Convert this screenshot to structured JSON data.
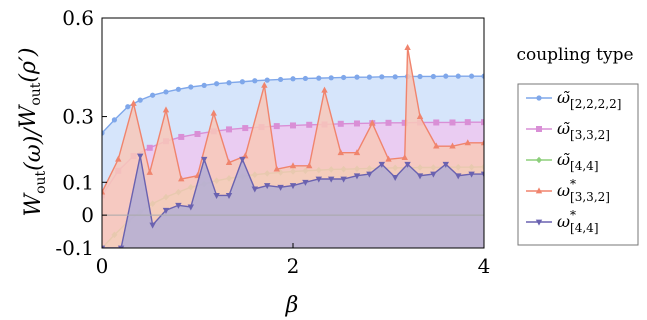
{
  "chart_data": {
    "type": "area",
    "xlabel": "β",
    "ylabel": "W_out(ω)/W_out(ρ′)",
    "xlim": [
      0,
      4
    ],
    "ylim": [
      -0.1,
      0.6
    ],
    "x_ticks": [
      "0",
      "2",
      "4"
    ],
    "y_ticks": [
      "-0.1",
      "0",
      "0.1",
      "0.3",
      "0.6"
    ],
    "legend_title": "coupling type",
    "legend_position": "right",
    "grid": false,
    "series": [
      {
        "name": "ω̃[2,2,2,2]",
        "color": "#7fa7ea",
        "fill": "#cfe0fa",
        "marker": "circle",
        "points": [
          [
            0,
            0.25
          ],
          [
            0.13,
            0.29
          ],
          [
            0.27,
            0.33
          ],
          [
            0.4,
            0.35
          ],
          [
            0.53,
            0.365
          ],
          [
            0.67,
            0.375
          ],
          [
            0.8,
            0.383
          ],
          [
            0.93,
            0.39
          ],
          [
            1.07,
            0.395
          ],
          [
            1.2,
            0.4
          ],
          [
            1.33,
            0.403
          ],
          [
            1.47,
            0.406
          ],
          [
            1.6,
            0.409
          ],
          [
            1.73,
            0.411
          ],
          [
            1.87,
            0.413
          ],
          [
            2.0,
            0.415
          ],
          [
            2.13,
            0.416
          ],
          [
            2.27,
            0.417
          ],
          [
            2.4,
            0.418
          ],
          [
            2.53,
            0.419
          ],
          [
            2.67,
            0.42
          ],
          [
            2.8,
            0.42
          ],
          [
            2.93,
            0.421
          ],
          [
            3.07,
            0.421
          ],
          [
            3.2,
            0.422
          ],
          [
            3.33,
            0.422
          ],
          [
            3.47,
            0.422
          ],
          [
            3.6,
            0.423
          ],
          [
            3.73,
            0.423
          ],
          [
            3.87,
            0.423
          ],
          [
            4.0,
            0.423
          ]
        ]
      },
      {
        "name": "ω̃[3,3,2]",
        "color": "#d98fd6",
        "fill": "#edc8f0",
        "marker": "square",
        "points": [
          [
            0,
            0.06
          ],
          [
            0.17,
            0.135
          ],
          [
            0.33,
            0.18
          ],
          [
            0.5,
            0.205
          ],
          [
            0.67,
            0.225
          ],
          [
            0.83,
            0.238
          ],
          [
            1.0,
            0.247
          ],
          [
            1.17,
            0.255
          ],
          [
            1.33,
            0.261
          ],
          [
            1.5,
            0.265
          ],
          [
            1.67,
            0.268
          ],
          [
            1.83,
            0.271
          ],
          [
            2.0,
            0.273
          ],
          [
            2.17,
            0.275
          ],
          [
            2.33,
            0.276
          ],
          [
            2.5,
            0.278
          ],
          [
            2.67,
            0.279
          ],
          [
            2.83,
            0.28
          ],
          [
            3.0,
            0.281
          ],
          [
            3.17,
            0.281
          ],
          [
            3.33,
            0.282
          ],
          [
            3.5,
            0.282
          ],
          [
            3.67,
            0.282
          ],
          [
            3.83,
            0.283
          ],
          [
            4.0,
            0.283
          ]
        ]
      },
      {
        "name": "ω̃[4,4]",
        "color": "#8dcf7c",
        "fill": "#d7efcc",
        "marker": "diamond",
        "points": [
          [
            0,
            -0.1
          ],
          [
            0.13,
            -0.06
          ],
          [
            0.27,
            -0.02
          ],
          [
            0.4,
            0.01
          ],
          [
            0.53,
            0.035
          ],
          [
            0.67,
            0.055
          ],
          [
            0.8,
            0.07
          ],
          [
            0.93,
            0.085
          ],
          [
            1.07,
            0.095
          ],
          [
            1.2,
            0.105
          ],
          [
            1.33,
            0.112
          ],
          [
            1.47,
            0.118
          ],
          [
            1.6,
            0.123
          ],
          [
            1.73,
            0.127
          ],
          [
            1.87,
            0.13
          ],
          [
            2.0,
            0.133
          ],
          [
            2.13,
            0.135
          ],
          [
            2.27,
            0.137
          ],
          [
            2.4,
            0.139
          ],
          [
            2.53,
            0.14
          ],
          [
            2.67,
            0.141
          ],
          [
            2.8,
            0.142
          ],
          [
            2.93,
            0.143
          ],
          [
            3.07,
            0.144
          ],
          [
            3.2,
            0.144
          ],
          [
            3.33,
            0.145
          ],
          [
            3.47,
            0.145
          ],
          [
            3.6,
            0.146
          ],
          [
            3.73,
            0.146
          ],
          [
            3.87,
            0.146
          ],
          [
            4.0,
            0.147
          ]
        ]
      },
      {
        "name": "ω*[3,3,2]",
        "color": "#f0846d",
        "fill": "#f8c8b8",
        "marker": "triangle-up",
        "points": [
          [
            0,
            0.07
          ],
          [
            0.17,
            0.17
          ],
          [
            0.33,
            0.34
          ],
          [
            0.5,
            0.13
          ],
          [
            0.67,
            0.32
          ],
          [
            0.83,
            0.11
          ],
          [
            1.0,
            0.12
          ],
          [
            1.17,
            0.31
          ],
          [
            1.33,
            0.16
          ],
          [
            1.5,
            0.18
          ],
          [
            1.7,
            0.395
          ],
          [
            1.83,
            0.14
          ],
          [
            2.0,
            0.15
          ],
          [
            2.17,
            0.15
          ],
          [
            2.33,
            0.38
          ],
          [
            2.5,
            0.19
          ],
          [
            2.67,
            0.19
          ],
          [
            2.83,
            0.28
          ],
          [
            3.0,
            0.17
          ],
          [
            3.17,
            0.175
          ],
          [
            3.2,
            0.51
          ],
          [
            3.33,
            0.3
          ],
          [
            3.5,
            0.21
          ],
          [
            3.67,
            0.21
          ],
          [
            3.83,
            0.22
          ],
          [
            4.0,
            0.22
          ]
        ]
      },
      {
        "name": "ω*[4,4]",
        "color": "#6a62b0",
        "fill": "#b3aed5",
        "marker": "triangle-down",
        "points": [
          [
            0,
            -0.15
          ],
          [
            0.2,
            -0.12
          ],
          [
            0.4,
            0.18
          ],
          [
            0.53,
            -0.03
          ],
          [
            0.67,
            0.015
          ],
          [
            0.8,
            0.03
          ],
          [
            0.93,
            0.025
          ],
          [
            1.07,
            0.17
          ],
          [
            1.2,
            0.06
          ],
          [
            1.33,
            0.06
          ],
          [
            1.47,
            0.17
          ],
          [
            1.6,
            0.08
          ],
          [
            1.73,
            0.09
          ],
          [
            1.87,
            0.085
          ],
          [
            2.0,
            0.09
          ],
          [
            2.13,
            0.1
          ],
          [
            2.27,
            0.11
          ],
          [
            2.4,
            0.11
          ],
          [
            2.53,
            0.11
          ],
          [
            2.67,
            0.12
          ],
          [
            2.8,
            0.125
          ],
          [
            2.93,
            0.155
          ],
          [
            3.07,
            0.115
          ],
          [
            3.2,
            0.155
          ],
          [
            3.33,
            0.12
          ],
          [
            3.47,
            0.125
          ],
          [
            3.6,
            0.155
          ],
          [
            3.73,
            0.12
          ],
          [
            3.87,
            0.125
          ],
          [
            4.0,
            0.125
          ]
        ]
      }
    ]
  }
}
